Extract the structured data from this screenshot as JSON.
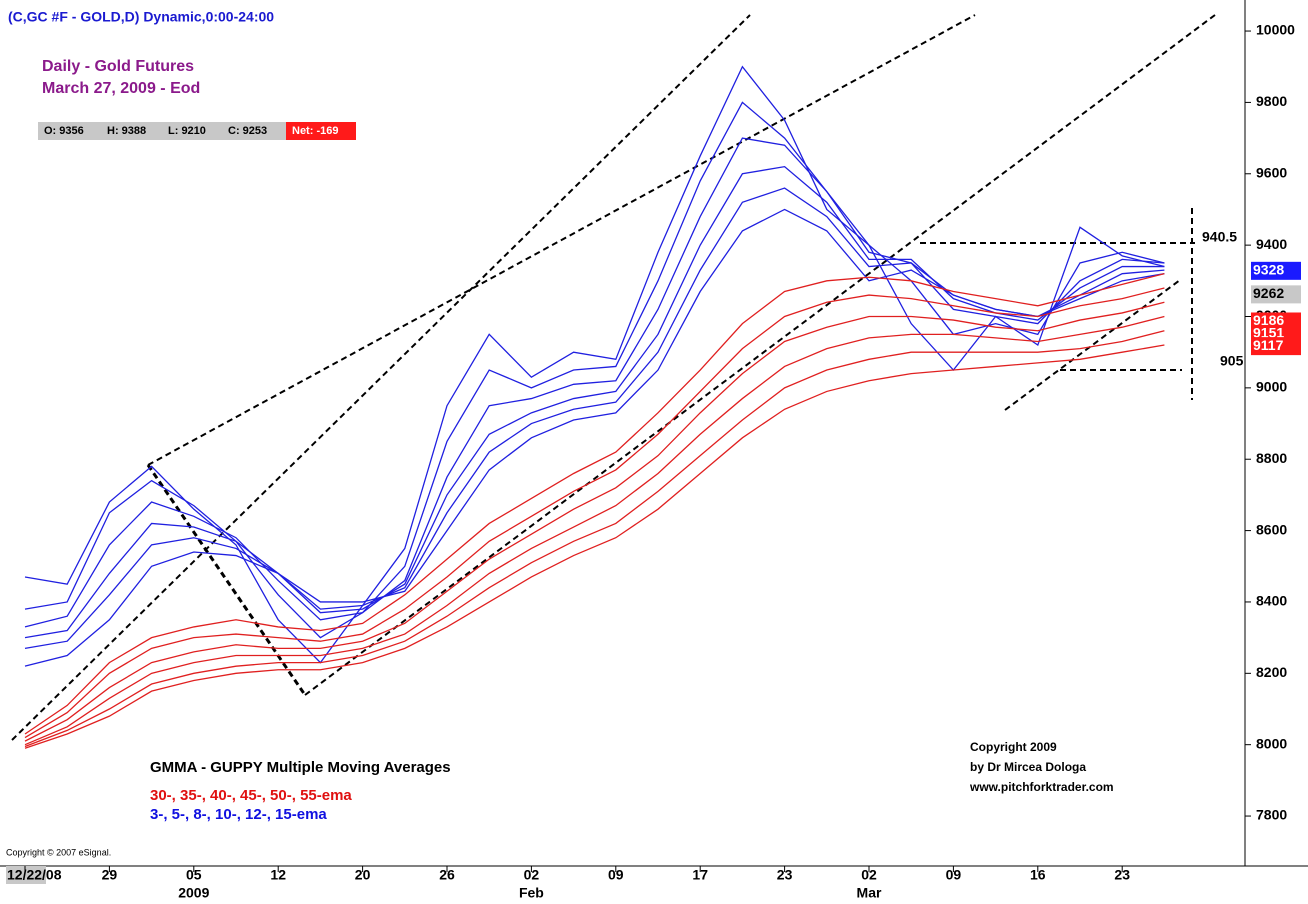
{
  "chart_data": {
    "type": "line",
    "header": "(C,GC #F - GOLD,D) Dynamic,0:00-24:00",
    "title": "Daily - Gold Futures",
    "subtitle": "March 27, 2009 - Eod",
    "ohlc": [
      "O: 9356",
      "H: 9388",
      "L: 9210",
      "C: 9253",
      "Net: -169"
    ],
    "legend_title": "GMMA - GUPPY Multiple Moving Averages",
    "legend_long": "30-, 35-, 40-, 45-, 50-, 55-ema",
    "legend_short": "3-, 5-, 8-, 10-, 12-, 15-ema",
    "credits": [
      "Copyright 2009",
      "by Dr Mircea Dologa",
      "www.pitchforktrader.com"
    ],
    "esignal_copyright": "Copyright © 2007 eSignal.",
    "annotations": [
      "940.5",
      "905"
    ],
    "categories": [
      "12/22/08",
      null,
      "29",
      null,
      "05",
      null,
      "12",
      null,
      "20",
      null,
      "26",
      null,
      "02",
      null,
      "09",
      null,
      "17",
      null,
      "23",
      null,
      "02",
      null,
      "09",
      null,
      "16",
      null,
      "23",
      null
    ],
    "sublabels": [
      null,
      null,
      null,
      null,
      "2009",
      null,
      null,
      null,
      null,
      null,
      null,
      null,
      "Feb",
      null,
      null,
      null,
      null,
      null,
      null,
      null,
      "Mar",
      null,
      null,
      null,
      null,
      null,
      null,
      null
    ],
    "ylim": [
      7660,
      10087
    ],
    "yticks": [
      7800,
      8000,
      8200,
      8400,
      8600,
      8800,
      9000,
      9200,
      9400,
      9600,
      9800,
      10000
    ],
    "series": [
      {
        "color": "#2020e0",
        "values": [
          8470,
          8450,
          8680,
          8780,
          8660,
          8560,
          8350,
          8230,
          8390,
          8550,
          8950,
          9150,
          9030,
          9100,
          9080,
          9380,
          9650,
          9900,
          9750,
          9500,
          9400,
          9180,
          9050,
          9200,
          9120,
          9450,
          9370,
          9340
        ]
      },
      {
        "color": "#2020e0",
        "values": [
          8380,
          8400,
          8650,
          8740,
          8670,
          8570,
          8420,
          8300,
          8370,
          8500,
          8850,
          9050,
          9000,
          9050,
          9060,
          9300,
          9580,
          9800,
          9700,
          9550,
          9400,
          9300,
          9150,
          9180,
          9150,
          9350,
          9380,
          9350
        ]
      },
      {
        "color": "#2020e0",
        "values": [
          8330,
          8360,
          8560,
          8680,
          8640,
          8580,
          8460,
          8350,
          8370,
          8460,
          8750,
          8950,
          8970,
          9010,
          9020,
          9220,
          9480,
          9700,
          9680,
          9550,
          9380,
          9350,
          9220,
          9200,
          9180,
          9300,
          9360,
          9350
        ]
      },
      {
        "color": "#2020e0",
        "values": [
          8300,
          8320,
          8480,
          8620,
          8610,
          8570,
          8480,
          8370,
          8380,
          8450,
          8700,
          8870,
          8930,
          8970,
          8990,
          9150,
          9400,
          9600,
          9620,
          9520,
          9360,
          9360,
          9250,
          9210,
          9190,
          9280,
          9340,
          9340
        ]
      },
      {
        "color": "#2020e0",
        "values": [
          8270,
          8290,
          8420,
          8560,
          8580,
          8550,
          8480,
          8380,
          8390,
          8440,
          8650,
          8820,
          8900,
          8940,
          8960,
          9100,
          9330,
          9520,
          9560,
          9480,
          9340,
          9350,
          9260,
          9220,
          9200,
          9260,
          9320,
          9330
        ]
      },
      {
        "color": "#2020e0",
        "values": [
          8220,
          8250,
          8350,
          8500,
          8540,
          8530,
          8480,
          8400,
          8400,
          8430,
          8600,
          8770,
          8860,
          8910,
          8930,
          9050,
          9270,
          9440,
          9500,
          9440,
          9300,
          9330,
          9260,
          9220,
          9200,
          9250,
          9300,
          9320
        ]
      },
      {
        "color": "#e02020",
        "values": [
          8030,
          8110,
          8230,
          8300,
          8330,
          8350,
          8330,
          8320,
          8340,
          8420,
          8520,
          8620,
          8690,
          8760,
          8820,
          8930,
          9050,
          9180,
          9270,
          9300,
          9310,
          9300,
          9270,
          9250,
          9230,
          9260,
          9290,
          9320
        ]
      },
      {
        "color": "#e02020",
        "values": [
          8020,
          8090,
          8200,
          8270,
          8300,
          8310,
          8300,
          8290,
          8310,
          8380,
          8470,
          8570,
          8640,
          8710,
          8770,
          8870,
          8990,
          9110,
          9200,
          9240,
          9260,
          9250,
          9230,
          9210,
          9200,
          9230,
          9250,
          9280
        ]
      },
      {
        "color": "#e02020",
        "values": [
          8010,
          8070,
          8160,
          8230,
          8260,
          8280,
          8270,
          8270,
          8290,
          8340,
          8430,
          8520,
          8590,
          8660,
          8720,
          8810,
          8930,
          9040,
          9130,
          9170,
          9200,
          9200,
          9190,
          9170,
          9160,
          9190,
          9210,
          9240
        ]
      },
      {
        "color": "#e02020",
        "values": [
          8000,
          8050,
          8130,
          8200,
          8230,
          8250,
          8250,
          8250,
          8270,
          8310,
          8390,
          8480,
          8550,
          8610,
          8670,
          8760,
          8870,
          8970,
          9060,
          9110,
          9140,
          9150,
          9150,
          9140,
          9130,
          9150,
          9170,
          9200
        ]
      },
      {
        "color": "#e02020",
        "values": [
          7995,
          8040,
          8100,
          8170,
          8200,
          8220,
          8230,
          8230,
          8250,
          8290,
          8360,
          8440,
          8510,
          8570,
          8620,
          8710,
          8810,
          8910,
          9000,
          9050,
          9080,
          9100,
          9100,
          9100,
          9100,
          9110,
          9130,
          9160
        ]
      },
      {
        "color": "#e02020",
        "values": [
          7990,
          8030,
          8080,
          8150,
          8180,
          8200,
          8210,
          8210,
          8230,
          8270,
          8330,
          8400,
          8470,
          8530,
          8580,
          8660,
          8760,
          8860,
          8940,
          8990,
          9020,
          9040,
          9050,
          9060,
          9070,
          9080,
          9100,
          9120
        ]
      }
    ],
    "last_tags": [
      {
        "value": 9328,
        "color": "#1a1aff"
      },
      {
        "value": 9262,
        "color": "#c8c8c8"
      },
      {
        "value": 9186,
        "color": "#ff1a1a"
      },
      {
        "value": 9151,
        "color": "#ff1a1a"
      },
      {
        "value": 9117,
        "color": "#ff1a1a"
      }
    ]
  }
}
